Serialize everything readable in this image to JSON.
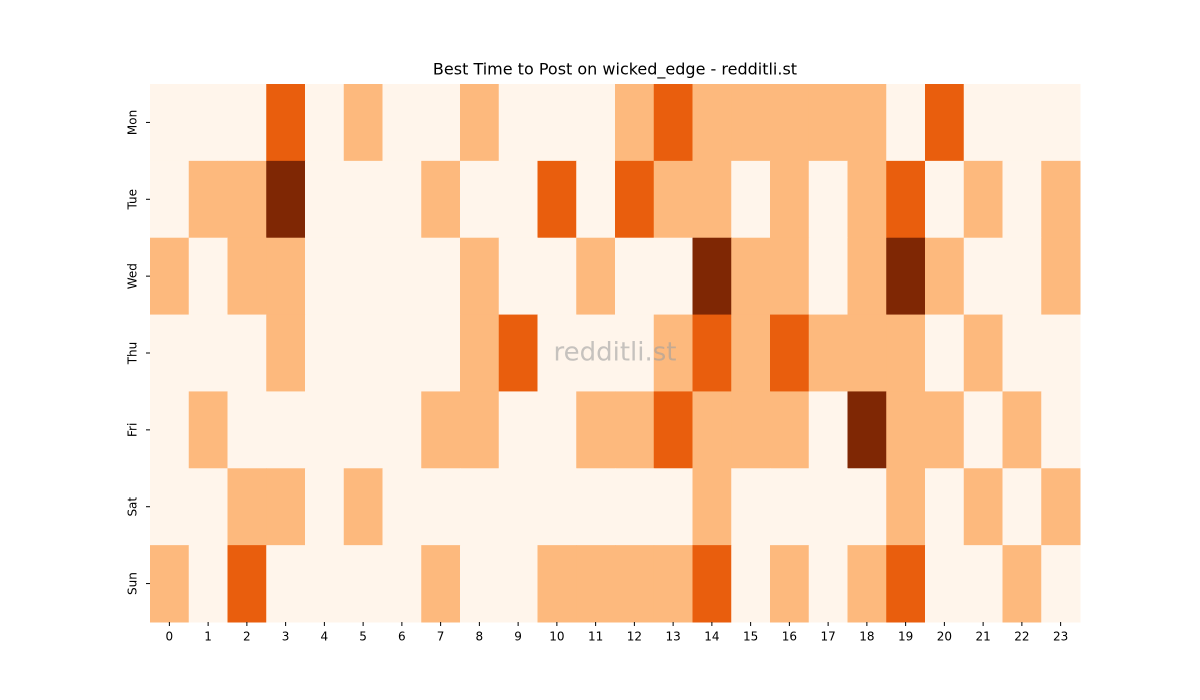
{
  "chart_data": {
    "type": "heatmap",
    "title": "Best Time to Post on wicked_edge - redditli.st",
    "watermark": "redditli.st",
    "x": [
      0,
      1,
      2,
      3,
      4,
      5,
      6,
      7,
      8,
      9,
      10,
      11,
      12,
      13,
      14,
      15,
      16,
      17,
      18,
      19,
      20,
      21,
      22,
      23
    ],
    "y": [
      "Mon",
      "Tue",
      "Wed",
      "Thu",
      "Fri",
      "Sat",
      "Sun"
    ],
    "values": [
      [
        0,
        0,
        0,
        2,
        0,
        1,
        0,
        0,
        1,
        0,
        0,
        0,
        1,
        2,
        1,
        1,
        1,
        1,
        1,
        0,
        2,
        0,
        0,
        0
      ],
      [
        0,
        1,
        1,
        3,
        0,
        0,
        0,
        1,
        0,
        0,
        2,
        0,
        2,
        1,
        1,
        0,
        1,
        0,
        1,
        2,
        0,
        1,
        0,
        1
      ],
      [
        1,
        0,
        1,
        1,
        0,
        0,
        0,
        0,
        1,
        0,
        0,
        1,
        0,
        0,
        3,
        1,
        1,
        0,
        1,
        3,
        1,
        0,
        0,
        1
      ],
      [
        0,
        0,
        0,
        1,
        0,
        0,
        0,
        0,
        1,
        2,
        0,
        0,
        0,
        1,
        2,
        1,
        2,
        1,
        1,
        1,
        0,
        1,
        0,
        0
      ],
      [
        0,
        1,
        0,
        0,
        0,
        0,
        0,
        1,
        1,
        0,
        0,
        1,
        1,
        2,
        1,
        1,
        1,
        0,
        3,
        1,
        1,
        0,
        1,
        0
      ],
      [
        0,
        0,
        1,
        1,
        0,
        1,
        0,
        0,
        0,
        0,
        0,
        0,
        0,
        0,
        1,
        0,
        0,
        0,
        0,
        1,
        0,
        1,
        0,
        1
      ],
      [
        1,
        0,
        2,
        0,
        0,
        0,
        0,
        1,
        0,
        0,
        1,
        1,
        1,
        1,
        2,
        0,
        1,
        0,
        1,
        2,
        0,
        0,
        1,
        0
      ]
    ],
    "colors": [
      "#fff5eb",
      "#fdb97d",
      "#e95e0d",
      "#7f2704"
    ]
  }
}
